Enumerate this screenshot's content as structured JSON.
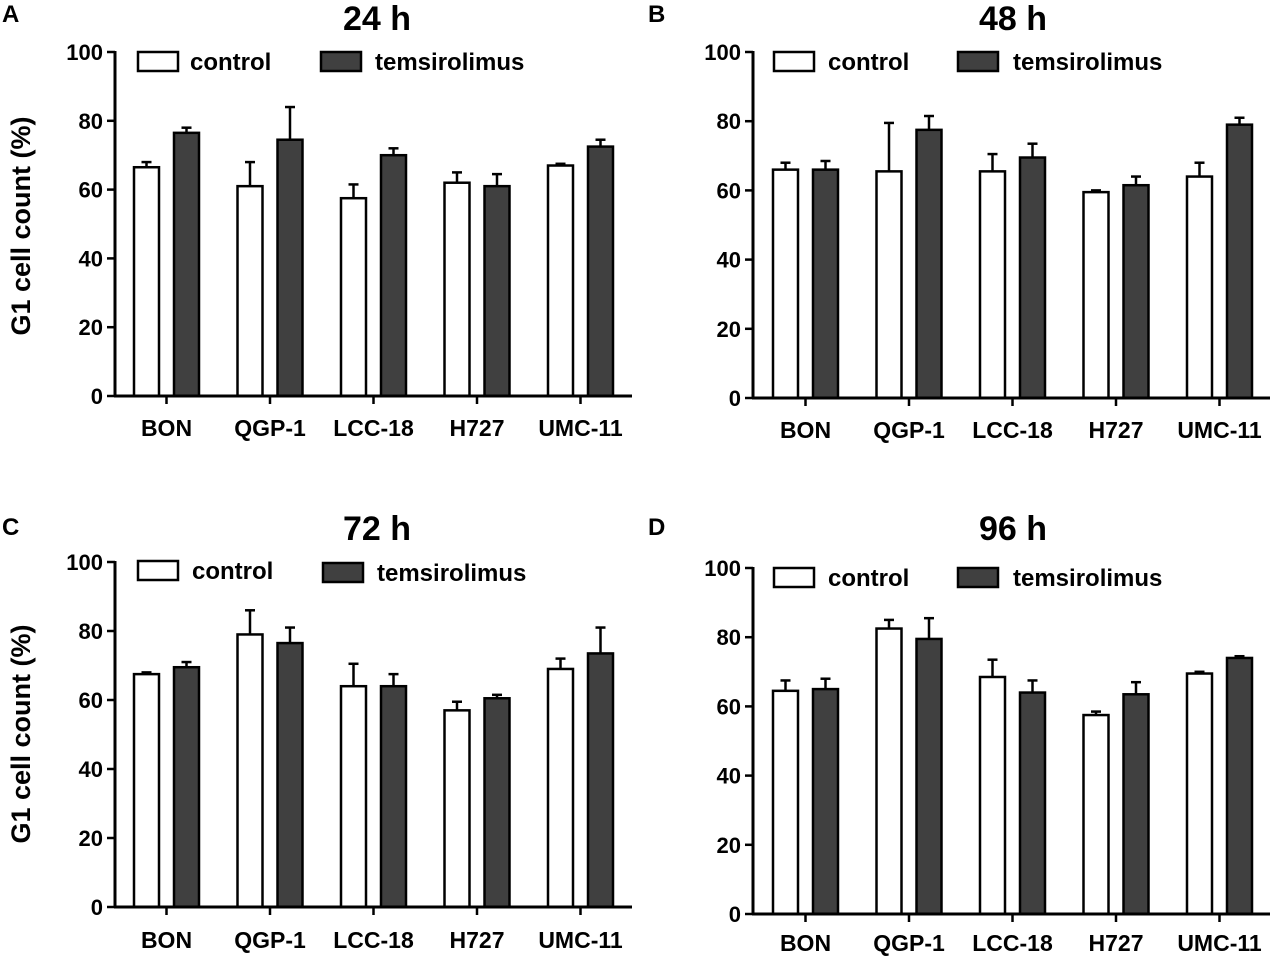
{
  "figure": {
    "panels": [
      {
        "letter": "A",
        "title": "24 h",
        "ylabel": "G1 cell count (%)"
      },
      {
        "letter": "B",
        "title": "48 h",
        "ylabel": ""
      },
      {
        "letter": "C",
        "title": "72 h",
        "ylabel": "G1 cell count (%)"
      },
      {
        "letter": "D",
        "title": "96 h",
        "ylabel": ""
      }
    ],
    "colors": {
      "control": "#ffffff",
      "temsirolimus": "#404040",
      "stroke": "#000000"
    }
  },
  "chart_data": [
    {
      "type": "bar",
      "title": "24 h",
      "xlabel": "",
      "ylabel": "G1 cell count (%)",
      "ylim": [
        0,
        100
      ],
      "yticks": [
        0,
        20,
        40,
        60,
        80,
        100
      ],
      "legend_position": "top",
      "categories": [
        "BON",
        "QGP-1",
        "LCC-18",
        "H727",
        "UMC-11"
      ],
      "series": [
        {
          "name": "control",
          "values": [
            66.5,
            61,
            57.5,
            62,
            67
          ],
          "errors": [
            1.5,
            7,
            4,
            3,
            0.5
          ]
        },
        {
          "name": "temsirolimus",
          "values": [
            76.5,
            74.5,
            70,
            61,
            72.5
          ],
          "errors": [
            1.5,
            9.5,
            2,
            3.5,
            2
          ]
        }
      ]
    },
    {
      "type": "bar",
      "title": "48 h",
      "xlabel": "",
      "ylabel": "",
      "ylim": [
        0,
        100
      ],
      "yticks": [
        0,
        20,
        40,
        60,
        80,
        100
      ],
      "legend_position": "top",
      "categories": [
        "BON",
        "QGP-1",
        "LCC-18",
        "H727",
        "UMC-11"
      ],
      "series": [
        {
          "name": "control",
          "values": [
            66,
            65.5,
            65.5,
            59.5,
            64
          ],
          "errors": [
            2,
            14,
            5,
            0.5,
            4
          ]
        },
        {
          "name": "temsirolimus",
          "values": [
            66,
            77.5,
            69.5,
            61.5,
            79
          ],
          "errors": [
            2.5,
            4,
            4,
            2.5,
            2
          ]
        }
      ]
    },
    {
      "type": "bar",
      "title": "72 h",
      "xlabel": "",
      "ylabel": "G1 cell count (%)",
      "ylim": [
        0,
        100
      ],
      "yticks": [
        0,
        20,
        40,
        60,
        80,
        100
      ],
      "legend_position": "top",
      "categories": [
        "BON",
        "QGP-1",
        "LCC-18",
        "H727",
        "UMC-11"
      ],
      "series": [
        {
          "name": "control",
          "values": [
            67.5,
            79,
            64,
            57,
            69
          ],
          "errors": [
            0.5,
            7,
            6.5,
            2.5,
            3
          ]
        },
        {
          "name": "temsirolimus",
          "values": [
            69.5,
            76.5,
            64,
            60.5,
            73.5
          ],
          "errors": [
            1.5,
            4.5,
            3.5,
            1,
            7.5
          ]
        }
      ]
    },
    {
      "type": "bar",
      "title": "96 h",
      "xlabel": "",
      "ylabel": "",
      "ylim": [
        0,
        100
      ],
      "yticks": [
        0,
        20,
        40,
        60,
        80,
        100
      ],
      "legend_position": "top",
      "categories": [
        "BON",
        "QGP-1",
        "LCC-18",
        "H727",
        "UMC-11"
      ],
      "series": [
        {
          "name": "control",
          "values": [
            64.5,
            82.5,
            68.5,
            57.5,
            69.5
          ],
          "errors": [
            3,
            2.5,
            5,
            1,
            0.5
          ]
        },
        {
          "name": "temsirolimus",
          "values": [
            65,
            79.5,
            64,
            63.5,
            74
          ],
          "errors": [
            3,
            6,
            3.5,
            3.5,
            0.5
          ]
        }
      ]
    }
  ]
}
